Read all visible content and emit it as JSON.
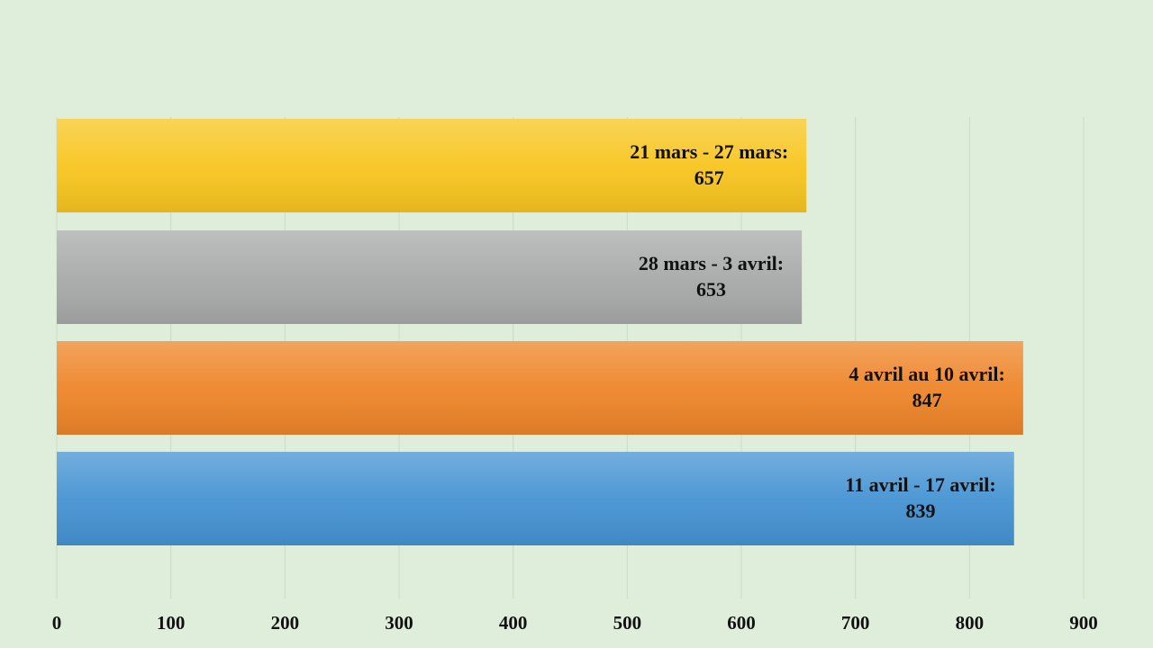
{
  "chart_data": {
    "type": "bar",
    "orientation": "horizontal",
    "categories": [
      "21 mars - 27 mars:",
      "28 mars - 3 avril:",
      "4 avril au 10 avril:",
      "11 avril - 17 avril:"
    ],
    "values": [
      657,
      653,
      847,
      839
    ],
    "colors": [
      "#f8c51f",
      "#a8a9a9",
      "#ee8529",
      "#4593d3"
    ],
    "xlim": [
      0,
      900
    ],
    "xticks": [
      0,
      100,
      200,
      300,
      400,
      500,
      600,
      700,
      800,
      900
    ],
    "grid": true
  }
}
